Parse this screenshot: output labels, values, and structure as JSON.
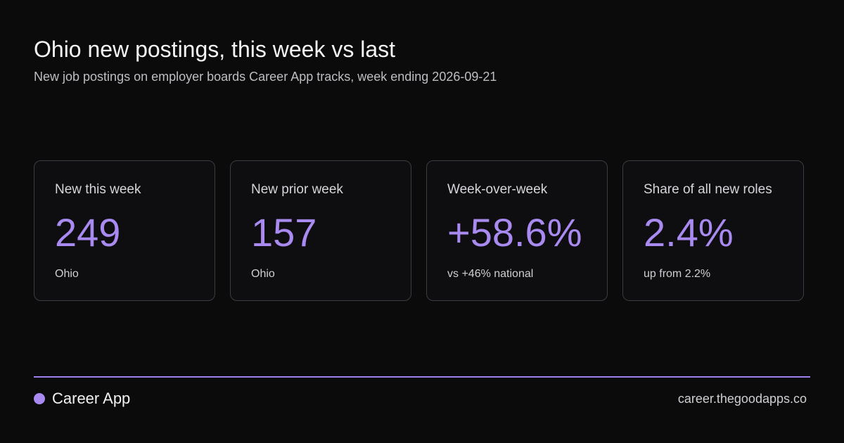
{
  "header": {
    "title": "Ohio new postings, this week vs last",
    "subtitle": "New job postings on employer boards Career App tracks, week ending 2026-09-21"
  },
  "cards": [
    {
      "label": "New this week",
      "value": "249",
      "note": "Ohio"
    },
    {
      "label": "New prior week",
      "value": "157",
      "note": "Ohio"
    },
    {
      "label": "Week-over-week",
      "value": "+58.6%",
      "note": "vs +46% national"
    },
    {
      "label": "Share of all new roles",
      "value": "2.4%",
      "note": "up from 2.2%"
    }
  ],
  "footer": {
    "brand": "Career App",
    "url": "career.thegoodapps.co"
  }
}
